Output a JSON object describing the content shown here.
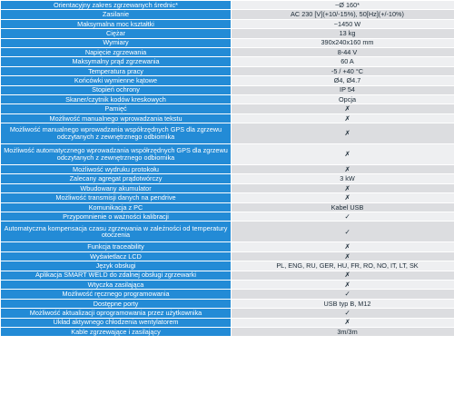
{
  "rows": [
    {
      "label": "Orientacyjny zakres zgrzewanych średnic*",
      "value": "~Ø 160*"
    },
    {
      "label": "Zasilanie",
      "value": "AC 230 [V](+10/-15%), 50[Hz](+/-10%)"
    },
    {
      "label": "Maksymalna moc kształtki",
      "value": "~1450 W"
    },
    {
      "label": "Ciężar",
      "value": "13 kg"
    },
    {
      "label": "Wymiary",
      "value": "390x240x160 mm"
    },
    {
      "label": "Napięcie zgrzewania",
      "value": "8-44 V"
    },
    {
      "label": "Maksymalny prąd zgrzewania",
      "value": "60 A"
    },
    {
      "label": "Temperatura pracy",
      "value": "-5 / +40 °C"
    },
    {
      "label": "Końcówki wymienne kątowe",
      "value": "Ø4,  Ø4.7"
    },
    {
      "label": "Stopień ochrony",
      "value": "IP 54"
    },
    {
      "label": "Skaner/czytnik kodów kreskowych",
      "value": "Opcja"
    },
    {
      "label": "Pamięć",
      "value": "✗"
    },
    {
      "label": "Możliwość manualnego wprowadzania tekstu",
      "value": "✗"
    },
    {
      "label": "Możliwość manualnego wprowadzania współrzędnych GPS dla zgrzewu odczytanych z zewnętrznego odbiornika",
      "value": "✗"
    },
    {
      "label": "Możliwość automatycznego wprowadzania współrzędnych GPS dla zgrzewu odczytanych z zewnętrznego odbiornika",
      "value": "✗"
    },
    {
      "label": "Możliwość wydruku protokołu",
      "value": "✗"
    },
    {
      "label": "Zalecany agregat prądotwórczy",
      "value": "3 kW"
    },
    {
      "label": "Wbudowany akumulator",
      "value": "✗"
    },
    {
      "label": "Możliwość transmisji danych na pendrive",
      "value": "✗"
    },
    {
      "label": "Komunikacja z PC",
      "value": "Kabel USB"
    },
    {
      "label": "Przypomnienie o ważności kalibracji",
      "value": "✓"
    },
    {
      "label": "Automatyczna kompensacja czasu zgrzewania w zależności od temperatury otoczenia",
      "value": "✓"
    },
    {
      "label": "Funkcja traceability",
      "value": "✗"
    },
    {
      "label": "Wyświetlacz LCD",
      "value": "✗"
    },
    {
      "label": "Język obsługi",
      "value": "PL, ENG, RU, GER, HU, FR, RO, NO, IT, LT, SK"
    },
    {
      "label": "Aplikacja SMART WELD do zdalnej obsługi zgrzewarki",
      "value": "✗"
    },
    {
      "label": "Wtyczka zasilająca",
      "value": "✗"
    },
    {
      "label": "Możliwość ręcznego programowania",
      "value": "✓"
    },
    {
      "label": "Dostępne porty",
      "value": "USB typ B, M12"
    },
    {
      "label": "Możliwość aktualizacji oprogramowania przez użytkownika",
      "value": "✓"
    },
    {
      "label": "Układ aktywnego chłodzenia wentylatorem",
      "value": "✗"
    },
    {
      "label": "Kable zgrzewające i zasilający",
      "value": "3m/3m"
    }
  ]
}
